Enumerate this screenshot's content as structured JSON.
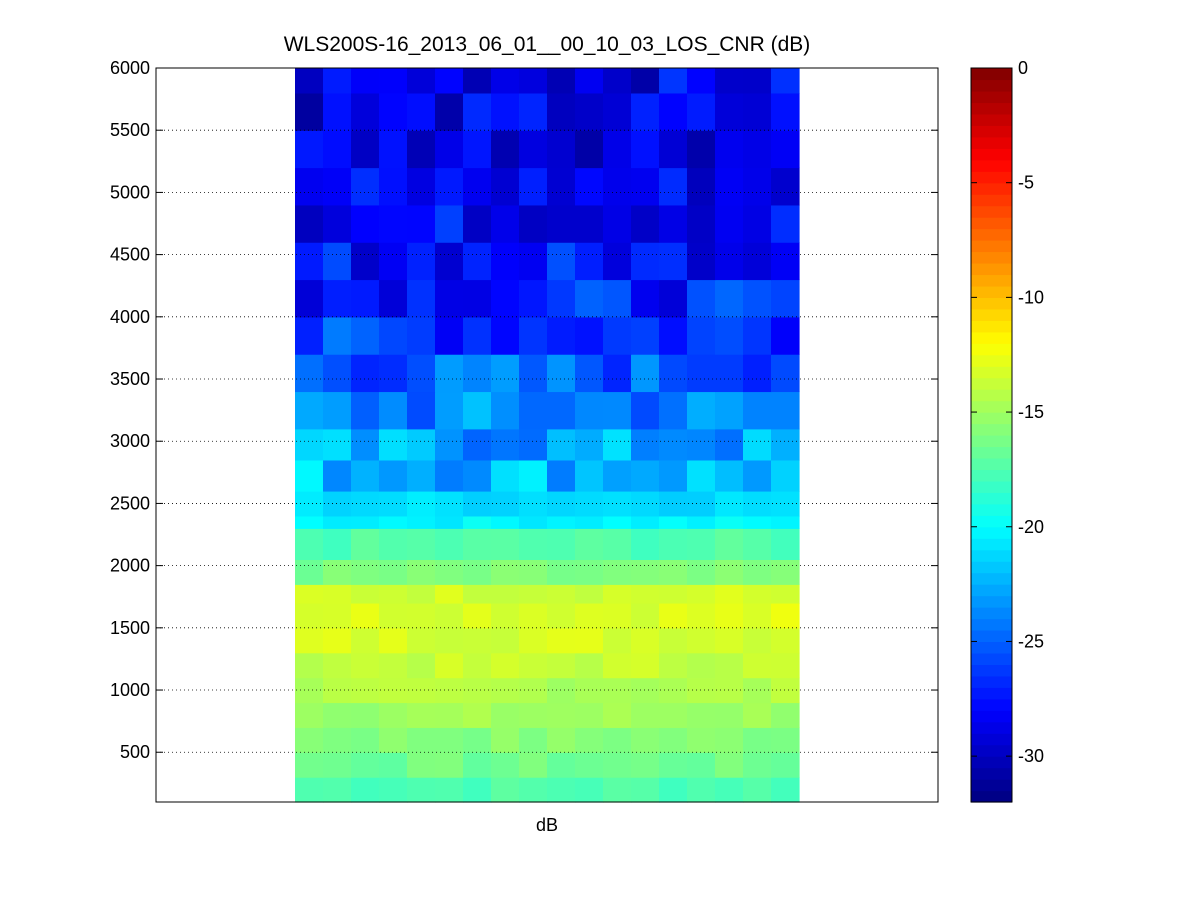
{
  "chart_data": {
    "type": "heatmap",
    "title": "WLS200S-16_2013_06_01__00_10_03_LOS_CNR (dB)",
    "xlabel": "dB",
    "ylabel": "",
    "ylim": [
      100,
      6000
    ],
    "yticks": [
      "500",
      "1000",
      "1500",
      "2000",
      "2500",
      "3000",
      "3500",
      "4000",
      "4500",
      "5000",
      "5500",
      "6000"
    ],
    "grid": "y-dotted",
    "colormap": "jet",
    "colorbar": {
      "range": [
        -32,
        0
      ],
      "ticks": [
        "0",
        "-5",
        "-10",
        "-15",
        "-20",
        "-25",
        "-30"
      ]
    },
    "columns": 18,
    "rows": [
      {
        "range_m": [
          100,
          300
        ],
        "cnr_db": -17.5
      },
      {
        "range_m": [
          300,
          500
        ],
        "cnr_db": -16.5
      },
      {
        "range_m": [
          500,
          700
        ],
        "cnr_db": -15.8
      },
      {
        "range_m": [
          700,
          900
        ],
        "cnr_db": -15.0
      },
      {
        "range_m": [
          900,
          1100
        ],
        "cnr_db": -14.5
      },
      {
        "range_m": [
          1100,
          1300
        ],
        "cnr_db": -13.8
      },
      {
        "range_m": [
          1300,
          1500
        ],
        "cnr_db": -13.2
      },
      {
        "range_m": [
          1500,
          1700
        ],
        "cnr_db": -13.0
      },
      {
        "range_m": [
          1700,
          1850
        ],
        "cnr_db": -13.4
      },
      {
        "range_m": [
          1850,
          2050
        ],
        "cnr_db": -16.2
      },
      {
        "range_m": [
          2050,
          2300
        ],
        "cnr_db": -17.5
      },
      {
        "range_m": [
          2300,
          2400
        ],
        "cnr_db": -20.2
      },
      {
        "range_m": [
          2400,
          2600
        ],
        "cnr_db": -21.0
      },
      {
        "range_m": [
          2600,
          2850
        ],
        "cnr_db": -22.0
      },
      {
        "range_m": [
          2850,
          3100
        ],
        "cnr_db": -23.0
      },
      {
        "range_m": [
          3100,
          3400
        ],
        "cnr_db": -24.0
      },
      {
        "range_m": [
          3400,
          3700
        ],
        "cnr_db": -25.0
      },
      {
        "range_m": [
          3700,
          4000
        ],
        "cnr_db": -26.3
      },
      {
        "range_m": [
          4000,
          4300
        ],
        "cnr_db": -27.0
      },
      {
        "range_m": [
          4300,
          4600
        ],
        "cnr_db": -27.5
      },
      {
        "range_m": [
          4600,
          4900
        ],
        "cnr_db": -28.0
      },
      {
        "range_m": [
          4900,
          5200
        ],
        "cnr_db": -28.3
      },
      {
        "range_m": [
          5200,
          5500
        ],
        "cnr_db": -28.5
      },
      {
        "range_m": [
          5500,
          5800
        ],
        "cnr_db": -28.8
      },
      {
        "range_m": [
          5800,
          6000
        ],
        "cnr_db": -28.5
      }
    ]
  }
}
